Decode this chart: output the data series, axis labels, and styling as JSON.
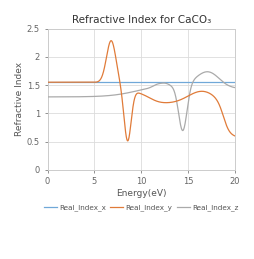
{
  "title": "Refractive Index for CaCO₃",
  "xlabel": "Energy(eV)",
  "ylabel": "Refractive Index",
  "xlim": [
    0,
    20
  ],
  "ylim": [
    0,
    2.5
  ],
  "yticks": [
    0,
    0.5,
    1.0,
    1.5,
    2.0,
    2.5
  ],
  "xticks": [
    0,
    5,
    10,
    15,
    20
  ],
  "legend": [
    "Real_Index_x",
    "Real_Index_y",
    "Real_Index_z"
  ],
  "colors": {
    "Real_Index_x": "#70A8D8",
    "Real_Index_y": "#E07B39",
    "Real_Index_z": "#AAAAAA"
  },
  "background": "#FFFFFF",
  "grid_color": "#DCDCDC",
  "border_color": "#CCCCCC"
}
